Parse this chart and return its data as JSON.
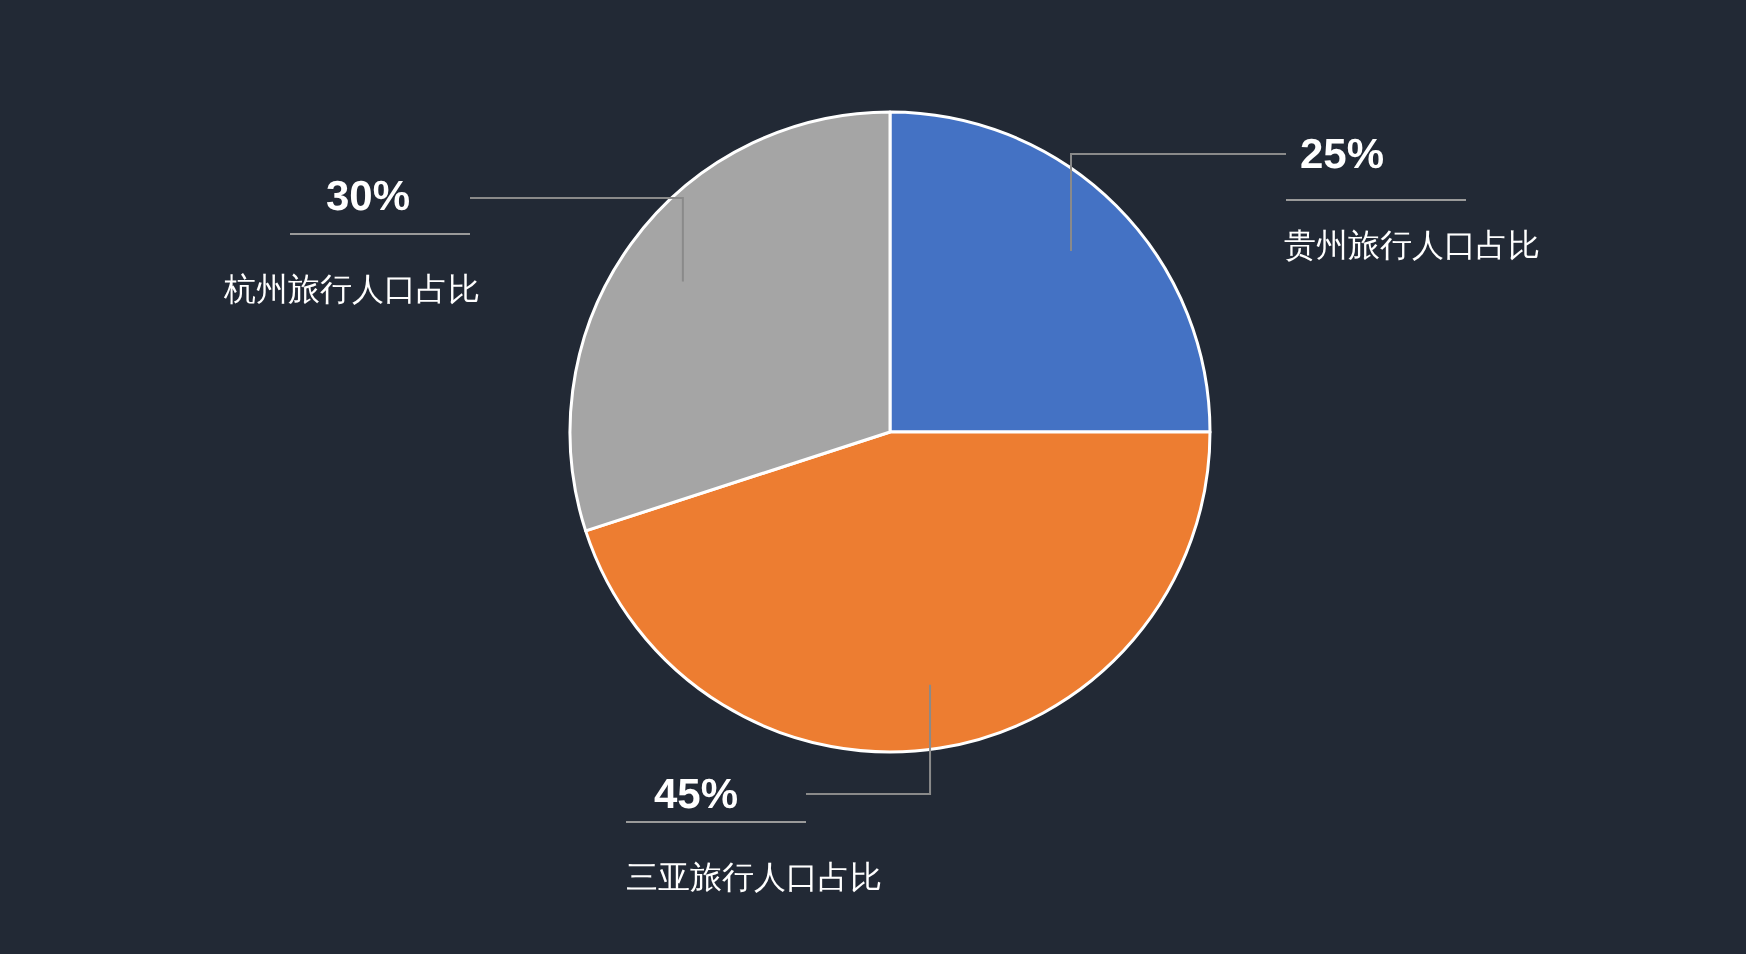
{
  "chart_data": {
    "type": "pie",
    "categories": [
      "贵州旅行人口占比",
      "三亚旅行人口占比",
      "杭州旅行人口占比"
    ],
    "values": [
      25,
      45,
      30
    ],
    "colors": [
      "#4472c4",
      "#ed7d31",
      "#a5a5a5"
    ],
    "value_labels": [
      "25%",
      "45%",
      "30%"
    ],
    "legend": false
  }
}
